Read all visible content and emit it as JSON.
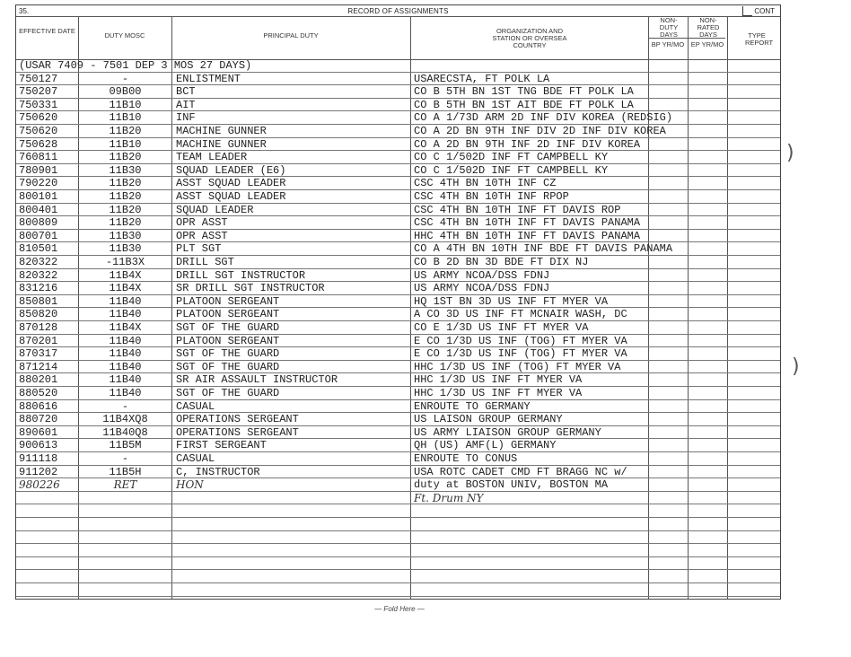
{
  "form": {
    "number": "35.",
    "title": "RECORD OF ASSIGNMENTS",
    "cont_label": "CONT",
    "fold_label": "— Fold Here —"
  },
  "headers": {
    "effective_date": "EFFECTIVE DATE",
    "duty_mosc": "DUTY MOSC",
    "principal_duty": "PRINCIPAL DUTY",
    "organization": "ORGANIZATION AND STATION OR OVERSEA COUNTRY",
    "non_duty_days": "NON-DUTY DAYS",
    "bp": "BP YR/MO",
    "non_rated_days": "NON-RATED DAYS",
    "ep": "EP YR/MO",
    "type_report": "TYPE REPORT"
  },
  "prior_service": "(USAR 7409 - 7501 DEP 3 MOS 27 DAYS)",
  "rows": [
    {
      "date": "750127",
      "mosc": "-",
      "duty": "ENLISTMENT",
      "org": "USARECSTA, FT POLK LA"
    },
    {
      "date": "750207",
      "mosc": "09B00",
      "duty": "BCT",
      "org": "CO B 5TH BN 1ST TNG BDE FT POLK LA"
    },
    {
      "date": "750331",
      "mosc": "11B10",
      "duty": "AIT",
      "org": "CO B 5TH BN 1ST AIT BDE FT POLK LA"
    },
    {
      "date": "750620",
      "mosc": "11B10",
      "duty": "INF",
      "org": "CO A 1/73D ARM 2D INF DIV KOREA (REDSIG)"
    },
    {
      "date": "750620",
      "mosc": "11B20",
      "duty": "MACHINE GUNNER",
      "org": "CO A 2D BN 9TH INF DIV 2D INF DIV KOREA"
    },
    {
      "date": "750628",
      "mosc": "11B10",
      "duty": "MACHINE GUNNER",
      "org": "CO A 2D BN 9TH INF 2D INF DIV KOREA"
    },
    {
      "date": "760811",
      "mosc": "11B20",
      "duty": "TEAM LEADER",
      "org": "CO C 1/502D INF FT CAMPBELL KY"
    },
    {
      "date": "780901",
      "mosc": "11B30",
      "duty": "SQUAD LEADER (E6)",
      "org": "CO C 1/502D INF FT CAMPBELL KY"
    },
    {
      "date": "790220",
      "mosc": "11B20",
      "duty": "ASST SQUAD LEADER",
      "org": "CSC 4TH BN 10TH INF CZ"
    },
    {
      "date": "800101",
      "mosc": "11B20",
      "duty": "ASST SQUAD LEADER",
      "org": "CSC 4TH BN 10TH INF RPOP"
    },
    {
      "date": "800401",
      "mosc": "11B20",
      "duty": "SQUAD LEADER",
      "org": "CSC 4TH BN 10TH INF FT DAVIS ROP"
    },
    {
      "date": "800809",
      "mosc": "11B20",
      "duty": "OPR ASST",
      "org": "CSC 4TH BN 10TH INF FT DAVIS PANAMA"
    },
    {
      "date": "800701",
      "mosc": "11B30",
      "duty": "OPR ASST",
      "org": "HHC 4TH BN 10TH INF FT DAVIS PANAMA"
    },
    {
      "date": "810501",
      "mosc": "11B30",
      "duty": "PLT SGT",
      "org": "CO A 4TH BN 10TH INF BDE FT DAVIS PANAMA"
    },
    {
      "date": "820322",
      "mosc": "-11B3X",
      "duty": "DRILL SGT",
      "org": "CO B 2D BN 3D BDE FT DIX NJ"
    },
    {
      "date": "820322",
      "mosc": "11B4X",
      "duty": "DRILL SGT INSTRUCTOR",
      "org": "US ARMY NCOA/DSS FDNJ"
    },
    {
      "date": "831216",
      "mosc": "11B4X",
      "duty": "SR DRILL SGT INSTRUCTOR",
      "org": "US ARMY NCOA/DSS FDNJ"
    },
    {
      "date": "850801",
      "mosc": "11B40",
      "duty": "PLATOON SERGEANT",
      "org": "HQ 1ST BN 3D US INF FT MYER VA"
    },
    {
      "date": "850820",
      "mosc": "11B40",
      "duty": "PLATOON SERGEANT",
      "org": "A CO 3D US INF FT MCNAIR WASH, DC"
    },
    {
      "date": "870128",
      "mosc": "11B4X",
      "duty": "SGT OF THE GUARD",
      "org": "CO E 1/3D US INF FT MYER VA"
    },
    {
      "date": "870201",
      "mosc": "11B40",
      "duty": "PLATOON SERGEANT",
      "org": "E CO 1/3D US INF (TOG) FT MYER VA"
    },
    {
      "date": "870317",
      "mosc": "11B40",
      "duty": "SGT OF THE GUARD",
      "org": "E CO 1/3D US INF (TOG) FT MYER VA"
    },
    {
      "date": "871214",
      "mosc": "11B40",
      "duty": "SGT OF THE GUARD",
      "org": "HHC 1/3D US INF (TOG) FT MYER VA"
    },
    {
      "date": "880201",
      "mosc": "11B40",
      "duty": "SR AIR ASSAULT INSTRUCTOR",
      "org": "HHC 1/3D US INF FT MYER VA"
    },
    {
      "date": "880520",
      "mosc": "11B40",
      "duty": "SGT OF THE GUARD",
      "org": "HHC 1/3D US INF FT MYER VA"
    },
    {
      "date": "880616",
      "mosc": "-",
      "duty": "CASUAL",
      "org": "ENROUTE TO GERMANY"
    },
    {
      "date": "880720",
      "mosc": "11B4XQ8",
      "duty": "OPERATIONS SERGEANT",
      "org": "US LAISON GROUP GERMANY"
    },
    {
      "date": "890601",
      "mosc": "11B40Q8",
      "duty": "OPERATIONS SERGEANT",
      "org": "US ARMY LIAISON GROUP GERMANY"
    },
    {
      "date": "900613",
      "mosc": "11B5M",
      "duty": "FIRST SERGEANT",
      "org": "QH (US) AMF(L) GERMANY"
    },
    {
      "date": "911118",
      "mosc": "-",
      "duty": "CASUAL",
      "org": "ENROUTE TO CONUS"
    },
    {
      "date": "911202",
      "mosc": "11B5H",
      "duty": "C, INSTRUCTOR",
      "org": "USA ROTC CADET CMD FT BRAGG NC w/"
    }
  ],
  "handwritten_row": {
    "date": "980226",
    "mosc": "RET",
    "duty": "HON",
    "org": "duty at BOSTON UNIV, BOSTON MA"
  },
  "handwritten_org": "Ft. Drum NY"
}
